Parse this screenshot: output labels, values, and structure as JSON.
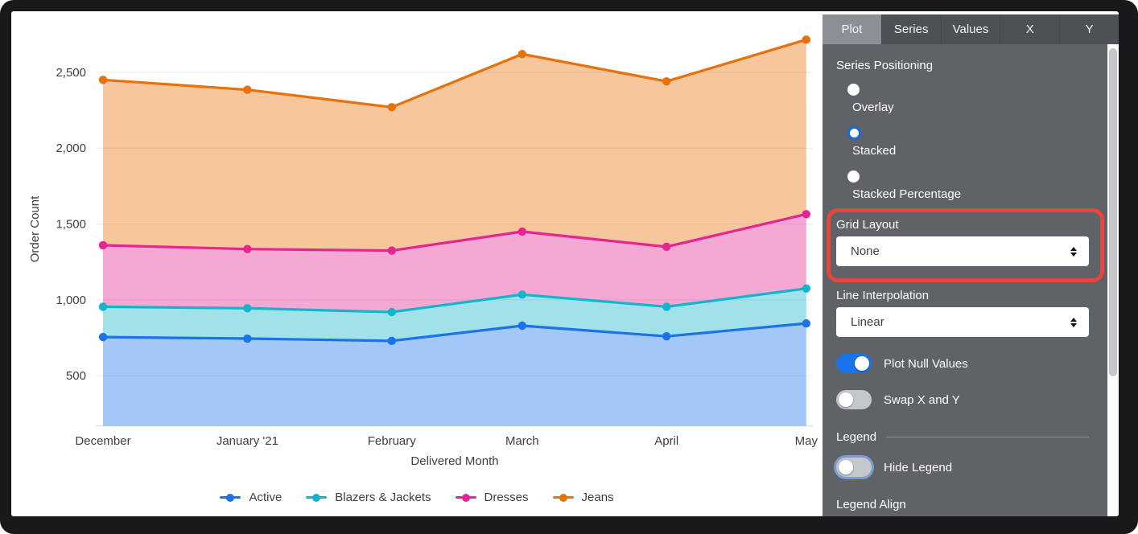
{
  "chart": {
    "y_axis_title": "Order Count",
    "x_axis_title": "Delivered Month",
    "ytick_labels": [
      "500",
      "1,000",
      "1,500",
      "2,000",
      "2,500"
    ],
    "colors": {
      "grid": "#E8EAED",
      "baseline": "#DDDFE2",
      "axis_text": "#3C4043"
    }
  },
  "chart_data": {
    "type": "area",
    "stacking": "stacked",
    "x": [
      "December",
      "January '21",
      "February",
      "March",
      "April",
      "May"
    ],
    "x_day_offsets": [
      0,
      31,
      62,
      90,
      121,
      151
    ],
    "series": [
      {
        "name": "Active",
        "color": "#1A73E8",
        "values": [
          755,
          745,
          730,
          830,
          760,
          845
        ]
      },
      {
        "name": "Blazers & Jackets",
        "color": "#12B5CB",
        "values": [
          200,
          200,
          190,
          205,
          195,
          230
        ]
      },
      {
        "name": "Dresses",
        "color": "#E52592",
        "values": [
          405,
          390,
          405,
          415,
          395,
          490
        ]
      },
      {
        "name": "Jeans",
        "color": "#E8710A",
        "values": [
          1090,
          1050,
          945,
          1170,
          1090,
          1150
        ]
      }
    ],
    "cumulative_totals": [
      2450,
      2385,
      2270,
      2620,
      2440,
      2715
    ],
    "title": "",
    "xlabel": "Delivered Month",
    "ylabel": "Order Count",
    "yticks": [
      500,
      1000,
      1500,
      2000,
      2500
    ],
    "ylim_estimate": [
      170,
      2900
    ],
    "grid": "horizontal",
    "legend_position": "bottom"
  },
  "panel": {
    "tabs": [
      {
        "label": "Plot",
        "selected": true
      },
      {
        "label": "Series",
        "selected": false
      },
      {
        "label": "Values",
        "selected": false
      },
      {
        "label": "X",
        "selected": false
      },
      {
        "label": "Y",
        "selected": false
      }
    ],
    "series_positioning": {
      "label": "Series Positioning",
      "options": [
        {
          "label": "Overlay",
          "selected": false
        },
        {
          "label": "Stacked",
          "selected": true
        },
        {
          "label": "Stacked Percentage",
          "selected": false
        }
      ]
    },
    "grid_layout": {
      "label": "Grid Layout",
      "value": "None",
      "highlight_color": "#E8453C"
    },
    "line_interpolation": {
      "label": "Line Interpolation",
      "value": "Linear"
    },
    "toggles": [
      {
        "label": "Plot Null Values",
        "on": true,
        "focused": false
      },
      {
        "label": "Swap X and Y",
        "on": false,
        "focused": false
      }
    ],
    "legend_section": {
      "header": "Legend",
      "toggle": {
        "label": "Hide Legend",
        "on": false,
        "focused": true
      },
      "align_label": "Legend Align"
    }
  }
}
